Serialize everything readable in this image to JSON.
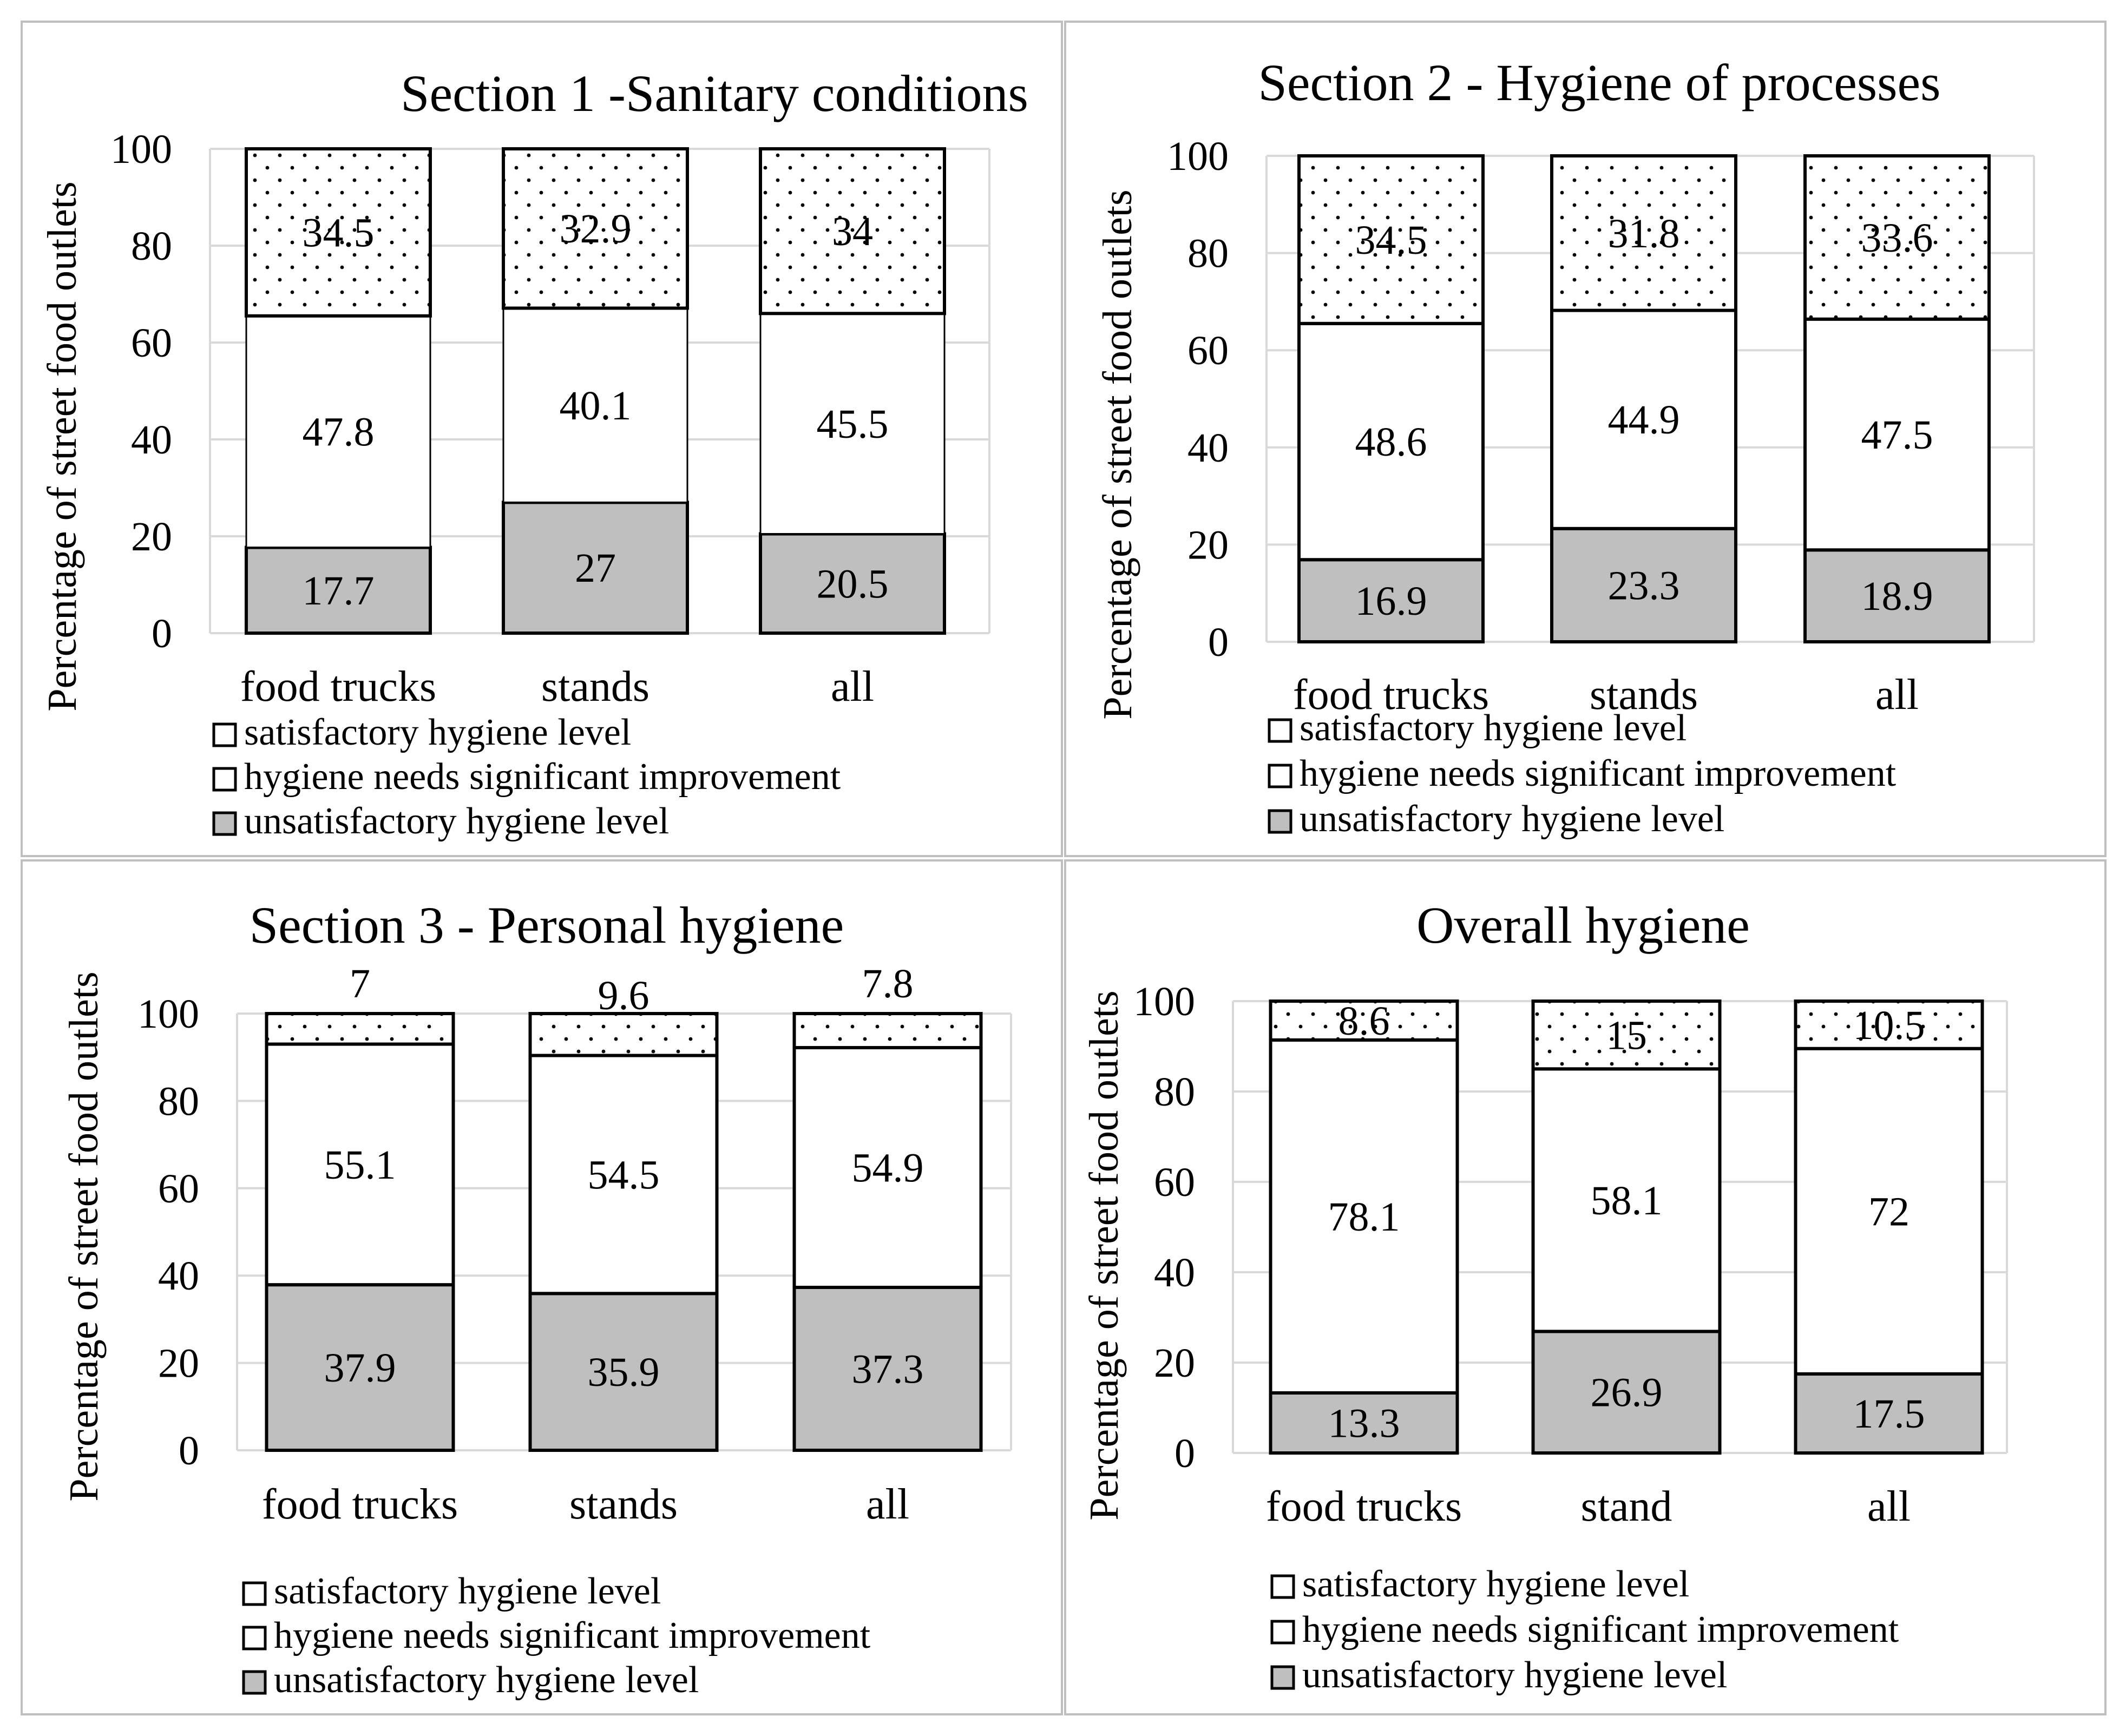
{
  "figure": {
    "colors": {
      "satisfactory": "#ffffff",
      "improvement": "#ffffff",
      "unsatisfactory": "#bfbfbf",
      "grid": "#d9d9d9",
      "panel_border": "#bfbfbf",
      "bar_outline": "#000000",
      "dots": "#000000"
    }
  },
  "chart_data": [
    {
      "type": "bar",
      "stacked": true,
      "title": "Section 1 -Sanitary conditions",
      "xlabel": "",
      "ylabel": "Percentage of street food outlets",
      "ylim": [
        0,
        100
      ],
      "yticks": [
        "0",
        "20",
        "40",
        "60",
        "80",
        "100"
      ],
      "grid": true,
      "categories": [
        "food trucks",
        "stands",
        "all"
      ],
      "series": [
        {
          "name": "unsatisfactory hygiene level",
          "key": "unsatisfactory",
          "values": [
            17.7,
            27,
            20.5
          ],
          "labels": [
            "17.7",
            "27",
            "20.5"
          ]
        },
        {
          "name": "hygiene needs significant improvement",
          "key": "improvement",
          "values": [
            47.8,
            40.1,
            45.5
          ],
          "labels": [
            "47.8",
            "40.1",
            "45.5"
          ]
        },
        {
          "name": "satisfactory hygiene level",
          "key": "satisfactory",
          "values": [
            34.5,
            32.9,
            34
          ],
          "labels": [
            "34.5",
            "32.9",
            "34"
          ]
        }
      ],
      "legend": [
        "satisfactory hygiene level",
        "hygiene needs significant improvement",
        "unsatisfactory hygiene level"
      ]
    },
    {
      "type": "bar",
      "stacked": true,
      "title": "Section 2 - Hygiene of processes",
      "xlabel": "",
      "ylabel": "Percentage of street food outlets",
      "ylim": [
        0,
        100
      ],
      "yticks": [
        "0",
        "20",
        "40",
        "60",
        "80",
        "100"
      ],
      "grid": true,
      "categories": [
        "food trucks",
        "stands",
        "all"
      ],
      "series": [
        {
          "name": "unsatisfactory hygiene level",
          "key": "unsatisfactory",
          "values": [
            16.9,
            23.3,
            18.9
          ],
          "labels": [
            "16.9",
            "23.3",
            "18.9"
          ]
        },
        {
          "name": "hygiene needs significant improvement",
          "key": "improvement",
          "values": [
            48.6,
            44.9,
            47.5
          ],
          "labels": [
            "48.6",
            "44.9",
            "47.5"
          ]
        },
        {
          "name": "satisfactory hygiene level",
          "key": "satisfactory",
          "values": [
            34.5,
            31.8,
            33.6
          ],
          "labels": [
            "34.5",
            "31.8",
            "33.6"
          ]
        }
      ],
      "legend": [
        "satisfactory hygiene level",
        "hygiene needs significant improvement",
        "unsatisfactory hygiene level"
      ]
    },
    {
      "type": "bar",
      "stacked": true,
      "title": "Section 3 - Personal hygiene",
      "xlabel": "",
      "ylabel": "Percentage of street food outlets",
      "ylim": [
        0,
        100
      ],
      "yticks": [
        "0",
        "20",
        "40",
        "60",
        "80",
        "100"
      ],
      "grid": true,
      "categories": [
        "food trucks",
        "stands",
        "all"
      ],
      "series": [
        {
          "name": "unsatisfactory hygiene level",
          "key": "unsatisfactory",
          "values": [
            37.9,
            35.9,
            37.3
          ],
          "labels": [
            "37.9",
            "35.9",
            "37.3"
          ]
        },
        {
          "name": "hygiene needs significant improvement",
          "key": "improvement",
          "values": [
            55.1,
            54.5,
            54.9
          ],
          "labels": [
            "55.1",
            "54.5",
            "54.9"
          ]
        },
        {
          "name": "satisfactory hygiene level",
          "key": "satisfactory",
          "values": [
            7,
            9.6,
            7.8
          ],
          "labels": [
            "7",
            "9.6",
            "7.8"
          ]
        }
      ],
      "legend": [
        "satisfactory hygiene level",
        "hygiene needs significant improvement",
        "unsatisfactory hygiene level"
      ]
    },
    {
      "type": "bar",
      "stacked": true,
      "title": "Overall hygiene",
      "xlabel": "",
      "ylabel": "Percentage of street food outlets",
      "ylim": [
        0,
        100
      ],
      "yticks": [
        "0",
        "20",
        "40",
        "60",
        "80",
        "100"
      ],
      "grid": true,
      "categories": [
        "food trucks",
        "stand",
        "all"
      ],
      "series": [
        {
          "name": "unsatisfactory hygiene level",
          "key": "unsatisfactory",
          "values": [
            13.3,
            26.9,
            17.5
          ],
          "labels": [
            "13.3",
            "26.9",
            "17.5"
          ]
        },
        {
          "name": "hygiene needs significant improvement",
          "key": "improvement",
          "values": [
            78.1,
            58.1,
            72
          ],
          "labels": [
            "78.1",
            "58.1",
            "72"
          ]
        },
        {
          "name": "satisfactory hygiene level",
          "key": "satisfactory",
          "values": [
            8.6,
            15,
            10.5
          ],
          "labels": [
            "8.6",
            "15",
            "10.5"
          ]
        }
      ],
      "legend": [
        "satisfactory hygiene level",
        "hygiene needs significant improvement",
        "unsatisfactory hygiene level"
      ]
    }
  ]
}
